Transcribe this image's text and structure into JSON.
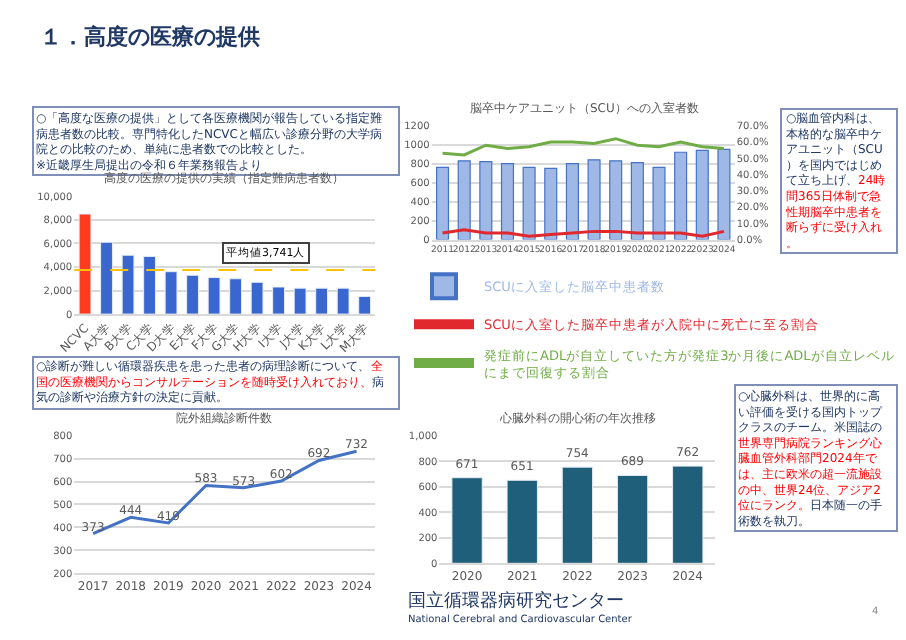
{
  "chart_data": [
    {
      "type": "other",
      "annotations": [
        "１．高度の医療の提供"
      ]
    },
    {
      "type": "other",
      "annotations": [
        "○「高度な医療の提供」として各医療機関が報告している指定難病患者数の比較。専門特化したNCVCと幅広い診療分野の大学病院との比較のため、単純に患者数での比較とした。\n※近畿厚生局提出の令和６年業務報告より"
      ]
    },
    {
      "type": "bar",
      "title": "高度の医療の提供の実績（指定難病患者数）",
      "categories": [
        "NCVC",
        "A大学",
        "B大学",
        "C大学",
        "D大学",
        "E大学",
        "F大学",
        "G大学",
        "H大学",
        "I大学",
        "J大学",
        "K大学",
        "L大学",
        "M大学"
      ],
      "values": [
        8500,
        6100,
        5000,
        4900,
        3600,
        3300,
        3100,
        3000,
        2700,
        2300,
        2200,
        2200,
        2200,
        1500
      ],
      "colors": [
        "#ff3b1f",
        "#3a66d0",
        "#3a66d0",
        "#3a66d0",
        "#3a66d0",
        "#3a66d0",
        "#3a66d0",
        "#3a66d0",
        "#3a66d0",
        "#3a66d0",
        "#3a66d0",
        "#3a66d0",
        "#3a66d0",
        "#3a66d0"
      ],
      "ylim": [
        0,
        10000
      ],
      "yticks": [
        0,
        {
          "value": 2000,
          "label": "2,000"
        },
        {
          "value": 4000,
          "label": "4,000"
        },
        {
          "value": 6000,
          "label": "6,000"
        },
        {
          "value": 8000,
          "label": "8,000"
        },
        {
          "value": 10000,
          "label": "10,000"
        }
      ],
      "grid": "y",
      "ref_lines": [
        {
          "axis": "y",
          "value": 3741,
          "label": "平均値3,741人",
          "color": "#ffc000",
          "line_style": "dashed"
        }
      ]
    },
    {
      "type": "other",
      "annotations": [
        "○診断が難しい循環器疾患を患った患者の病理診断について、",
        "全国の医療機関からコンサルテーションを随時受け入れており、",
        "病気の診断や治療方針の決定に貢献。"
      ]
    },
    {
      "type": "line",
      "title": "院外組織診断件数",
      "categories": [
        "2017",
        "2018",
        "2019",
        "2020",
        "2021",
        "2022",
        "2023",
        "2024"
      ],
      "values": [
        373,
        444,
        419,
        583,
        573,
        602,
        692,
        732
      ],
      "color": "#4472c4",
      "ylim": [
        200,
        800
      ],
      "yticks": [
        200,
        300,
        400,
        500,
        600,
        700,
        800
      ],
      "grid": "y",
      "data_labels": true
    },
    {
      "type": "bar",
      "title": "脳卒中ケアユニット（SCU）への入室者数",
      "categories": [
        "2011",
        "2012",
        "2013",
        "2014",
        "2015",
        "2016",
        "2017",
        "2018",
        "2019",
        "2020",
        "2021",
        "2022",
        "2023",
        "2024"
      ],
      "series": [
        {
          "name": "SCUに入室した脳卒中患者数",
          "color": "#9fb8e6",
          "values": [
            760,
            830,
            820,
            800,
            760,
            750,
            800,
            840,
            830,
            810,
            760,
            920,
            940,
            950
          ]
        },
        {
          "type": "line",
          "axis": "y2",
          "name": "SCUに入室した脳卒中患者が入院中に死亡に至る割合",
          "color": "#e0282e",
          "values": [
            4,
            6,
            4,
            4,
            2,
            3,
            4,
            5,
            5,
            4,
            4,
            4,
            2,
            5
          ]
        },
        {
          "type": "line",
          "axis": "y2",
          "name": "発症前にADLが自立していた方が発症3か月後にADLが自立レベルにまで回復する割合",
          "color": "#70ad47",
          "values": [
            53,
            52,
            58,
            56,
            57,
            60,
            60,
            59,
            62,
            58,
            57,
            60,
            57,
            56
          ]
        }
      ],
      "ylim": [
        0,
        1200
      ],
      "yticks": [
        0,
        200,
        400,
        600,
        800,
        1000,
        1200
      ],
      "y2lim": [
        0,
        70
      ],
      "y2ticks": [
        {
          "value": 0,
          "label": "0.0%"
        },
        {
          "value": 10,
          "label": "10.0%"
        },
        {
          "value": 20,
          "label": "20.0%"
        },
        {
          "value": 30,
          "label": "30.0%"
        },
        {
          "value": 40,
          "label": "40.0%"
        },
        {
          "value": 50,
          "label": "50.0%"
        },
        {
          "value": 60,
          "label": "60.0%"
        },
        {
          "value": 70,
          "label": "70.0%"
        }
      ],
      "grid": "y",
      "legend": "bottom"
    },
    {
      "type": "other",
      "annotations": [
        "○脳血管内科は、本格的な脳卒中ケアユニット（SCU）を国内ではじめて立ち上げ、",
        "24時間365日体制で急性期脳卒中患者を断らずに受け入れ。"
      ]
    },
    {
      "type": "bar",
      "title": "心臓外科の開心術の年次推移",
      "categories": [
        "2020",
        "2021",
        "2022",
        "2023",
        "2024"
      ],
      "values": [
        671,
        651,
        754,
        689,
        762
      ],
      "color": "#1f5f7a",
      "ylim": [
        0,
        1000
      ],
      "yticks": [
        0,
        200,
        400,
        600,
        800,
        {
          "value": 1000,
          "label": "1,000"
        }
      ],
      "grid": "y",
      "data_labels": true
    },
    {
      "type": "other",
      "annotations": [
        "○心臓外科は、世界的に高い評価を受ける国内トップクラスのチーム。米国誌の",
        "世界専門病院ランキング心臓血管外科部門2024年では、主に欧米の超一流施設の中、世界24位、アジア2位にランク。",
        "日本随一の手術数を執刀。"
      ]
    },
    {
      "type": "other",
      "annotations": [
        "国立循環器病研究センター",
        "National Cerebral and Cardiovascular Center",
        "4"
      ]
    }
  ]
}
